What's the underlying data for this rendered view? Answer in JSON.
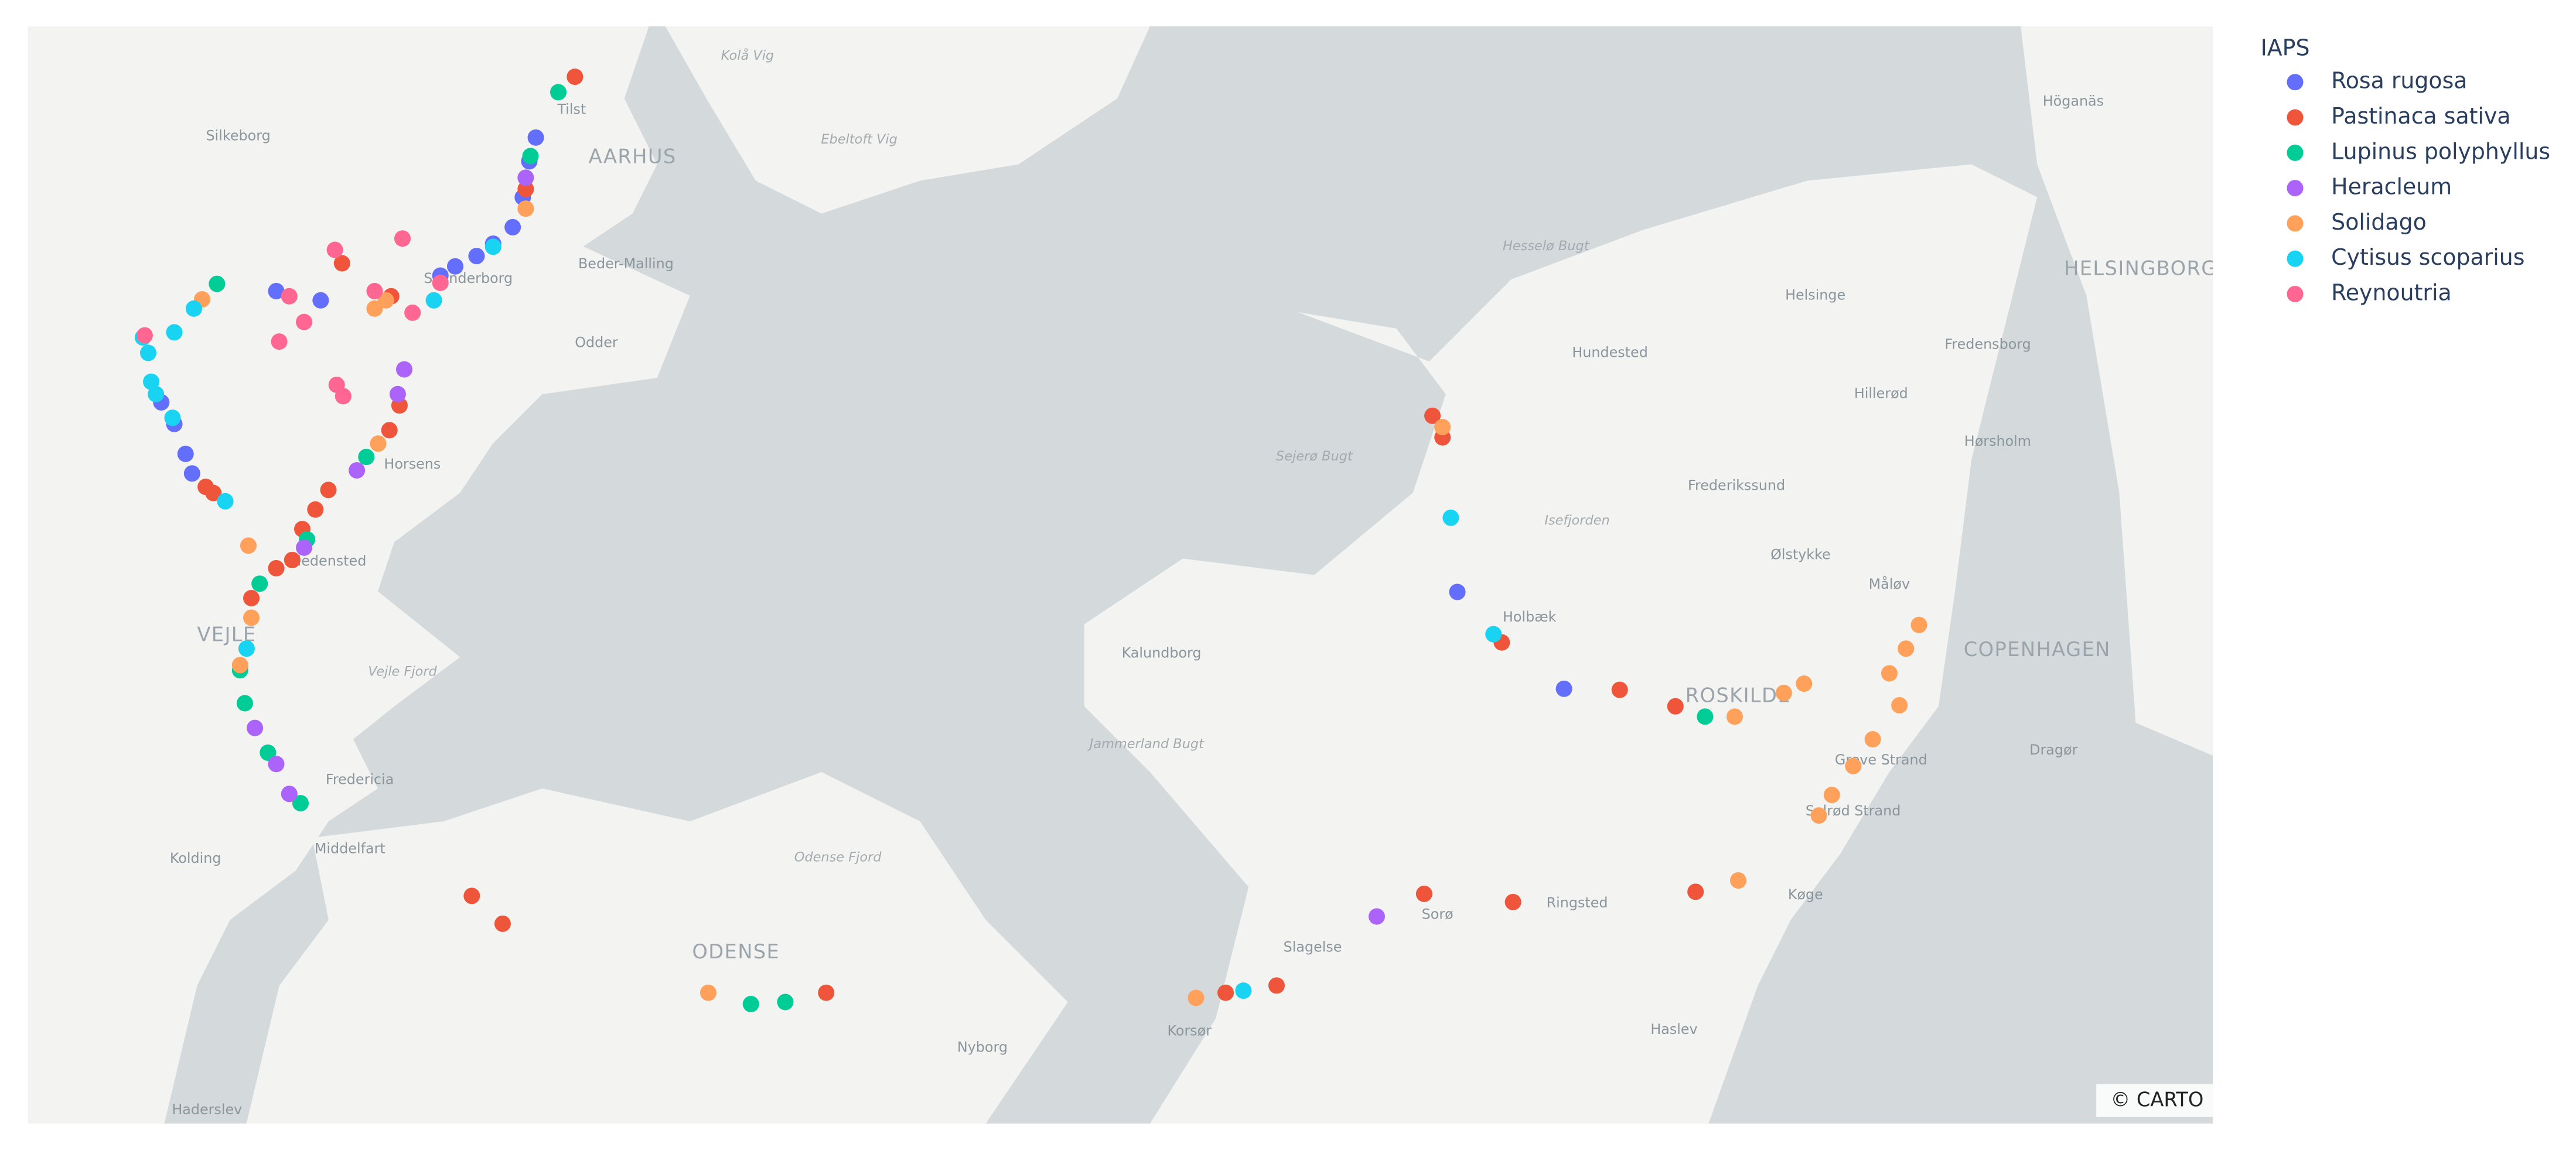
{
  "chart_data": {
    "type": "scatter_map",
    "lonlim": [
      9.18,
      12.867
    ],
    "latlim": [
      55.221,
      56.286
    ],
    "legend_title": "IAPS",
    "attribution": "© CARTO",
    "map_labels": [
      "Kolå Vig",
      "Tilst",
      "Silkeborg",
      "AARHUS",
      "Ebeltoft Vig",
      "Höganäs",
      "Beder-Malling",
      "Skanderborg",
      "Hesselø Bugt",
      "HELSINGBORG",
      "Helsinge",
      "Odder",
      "Fredensborg",
      "Hundested",
      "Hillerød",
      "Hørsholm",
      "Sejerø Bugt",
      "Horsens",
      "Frederikssund",
      "Isefjorden",
      "Ølstykke",
      "Hedensted",
      "Måløv",
      "Holbæk",
      "VEJLE",
      "Kalundborg",
      "COPENHAGEN",
      "ROSKILDE",
      "Vejle Fjord",
      "Jammerland Bugt",
      "Greve Strand",
      "Dragør",
      "Fredericia",
      "Solrød Strand",
      "Kolding",
      "Middelfart",
      "Odense Fjord",
      "Køge",
      "Sorø",
      "Ringsted",
      "ODENSE",
      "Slagelse",
      "Nyborg",
      "Korsør",
      "Haslev",
      "Haderslev"
    ],
    "series": [
      {
        "name": "Rosa rugosa",
        "color": "#636efa",
        "lon": [
          10.037,
          10.026,
          10.015,
          9.998,
          9.965,
          9.937,
          9.901,
          9.876,
          9.674,
          9.599,
          9.446,
          9.457,
          9.405,
          9.427,
          11.592,
          11.772
        ],
        "lat": [
          56.178,
          56.155,
          56.12,
          56.091,
          56.075,
          56.063,
          56.053,
          56.044,
          56.02,
          56.029,
          55.871,
          55.852,
          55.921,
          55.9,
          55.737,
          55.643
        ]
      },
      {
        "name": "Pastinaca sativa",
        "color": "#ef553b",
        "lon": [
          10.103,
          10.02,
          9.807,
          9.79,
          9.687,
          9.665,
          9.643,
          9.626,
          9.599,
          9.557,
          9.48,
          9.493,
          9.71,
          9.793,
          11.55,
          11.567,
          11.667,
          11.866,
          11.96,
          9.929,
          9.981,
          10.527,
          11.201,
          11.287,
          11.536,
          11.686,
          11.994
        ],
        "lat": [
          56.237,
          56.128,
          55.918,
          55.894,
          55.836,
          55.817,
          55.798,
          55.768,
          55.76,
          55.731,
          55.839,
          55.833,
          56.056,
          56.024,
          55.908,
          55.887,
          55.688,
          55.642,
          55.626,
          55.442,
          55.415,
          55.348,
          55.348,
          55.355,
          55.444,
          55.436,
          55.446
        ]
      },
      {
        "name": "Lupinus polyphyllus",
        "color": "#00cc96",
        "lon": [
          10.075,
          10.028,
          9.499,
          9.751,
          9.651,
          9.571,
          9.538,
          9.546,
          9.585,
          9.64,
          12.01,
          10.4,
          10.458
        ],
        "lat": [
          56.222,
          56.16,
          56.036,
          55.868,
          55.788,
          55.745,
          55.661,
          55.629,
          55.581,
          55.532,
          55.616,
          55.337,
          55.339
        ]
      },
      {
        "name": "Heracleum",
        "color": "#ab63fa",
        "lon": [
          10.02,
          9.815,
          9.804,
          9.735,
          9.646,
          9.563,
          9.599,
          9.621,
          11.456
        ],
        "lat": [
          56.139,
          55.953,
          55.929,
          55.855,
          55.78,
          55.605,
          55.57,
          55.541,
          55.422
        ]
      },
      {
        "name": "Solidago",
        "color": "#ffa15a",
        "lon": [
          10.02,
          9.474,
          9.765,
          9.784,
          9.771,
          9.552,
          9.557,
          9.538,
          11.567,
          12.06,
          12.143,
          12.177,
          12.321,
          12.349,
          12.371,
          12.338,
          12.293,
          12.26,
          12.224,
          12.202,
          12.066,
          10.328,
          11.151
        ],
        "lat": [
          56.109,
          56.021,
          56.012,
          56.02,
          55.881,
          55.782,
          55.712,
          55.666,
          55.897,
          55.616,
          55.639,
          55.648,
          55.658,
          55.682,
          55.705,
          55.627,
          55.594,
          55.568,
          55.54,
          55.52,
          55.457,
          55.348,
          55.343
        ]
      },
      {
        "name": "Cytisus scoparius",
        "color": "#19d3f3",
        "lon": [
          9.374,
          9.383,
          9.388,
          9.396,
          9.424,
          9.427,
          9.46,
          9.513,
          9.549,
          9.865,
          9.965,
          11.581,
          11.653,
          11.231
        ],
        "lat": [
          55.984,
          55.969,
          55.941,
          55.929,
          55.906,
          55.989,
          56.012,
          55.825,
          55.682,
          56.02,
          56.072,
          55.809,
          55.696,
          55.35
        ]
      },
      {
        "name": "Reynoutria",
        "color": "#ff6692",
        "lon": [
          9.698,
          9.812,
          9.621,
          9.604,
          9.646,
          9.701,
          9.712,
          9.829,
          9.765,
          9.876,
          9.377
        ],
        "lat": [
          56.069,
          56.08,
          56.024,
          55.98,
          55.999,
          55.938,
          55.927,
          56.008,
          56.029,
          56.037,
          55.986
        ]
      }
    ]
  }
}
